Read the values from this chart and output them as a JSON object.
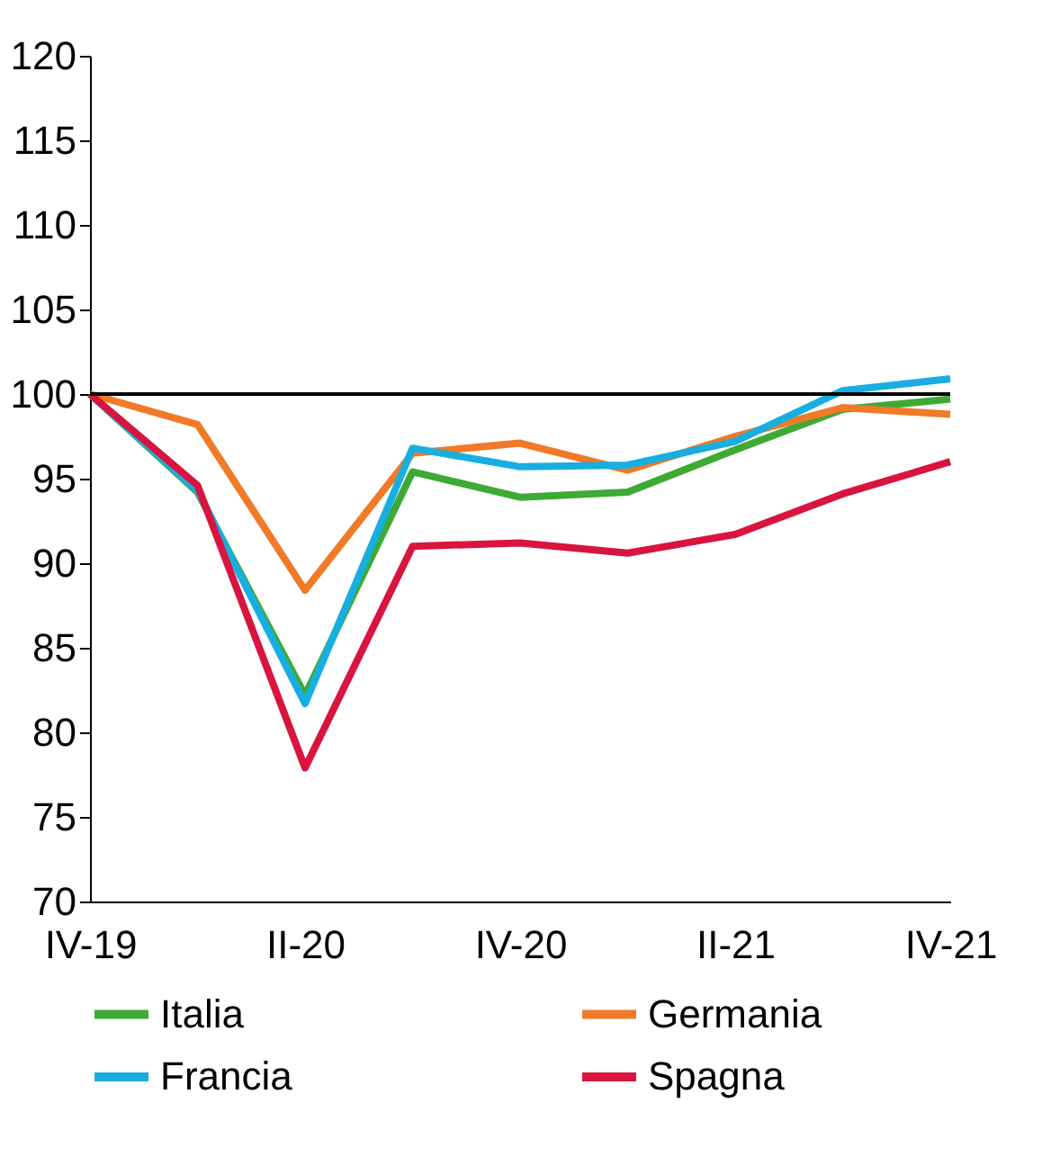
{
  "chart_data": {
    "type": "line",
    "categories": [
      "IV-19",
      null,
      "II-20",
      null,
      "IV-20",
      null,
      "II-21",
      null,
      "IV-21"
    ],
    "series": [
      {
        "name": "Italia",
        "color": "#3daa35",
        "values": [
          100,
          94.2,
          82.2,
          95.4,
          93.9,
          94.2,
          96.7,
          99.1,
          99.7
        ]
      },
      {
        "name": "Germania",
        "color": "#f07a28",
        "values": [
          100,
          98.2,
          88.4,
          96.5,
          97.1,
          95.5,
          97.5,
          99.2,
          98.8
        ]
      },
      {
        "name": "Francia",
        "color": "#19aee0",
        "values": [
          100,
          94.3,
          81.7,
          96.8,
          95.7,
          95.8,
          97.2,
          100.2,
          100.9
        ]
      },
      {
        "name": "Spagna",
        "color": "#d8143f",
        "values": [
          100,
          94.6,
          77.9,
          91.0,
          91.2,
          90.6,
          91.7,
          94.1,
          96.0
        ]
      }
    ],
    "ylim": [
      70,
      120
    ],
    "yticks": [
      70,
      75,
      80,
      85,
      90,
      95,
      100,
      105,
      110,
      115,
      120
    ],
    "ref_lines": [
      {
        "axis": "y",
        "value": 100,
        "color": "#000000"
      }
    ],
    "grid": false,
    "legend": "bottom",
    "marker": "none",
    "line_style": "solid"
  }
}
